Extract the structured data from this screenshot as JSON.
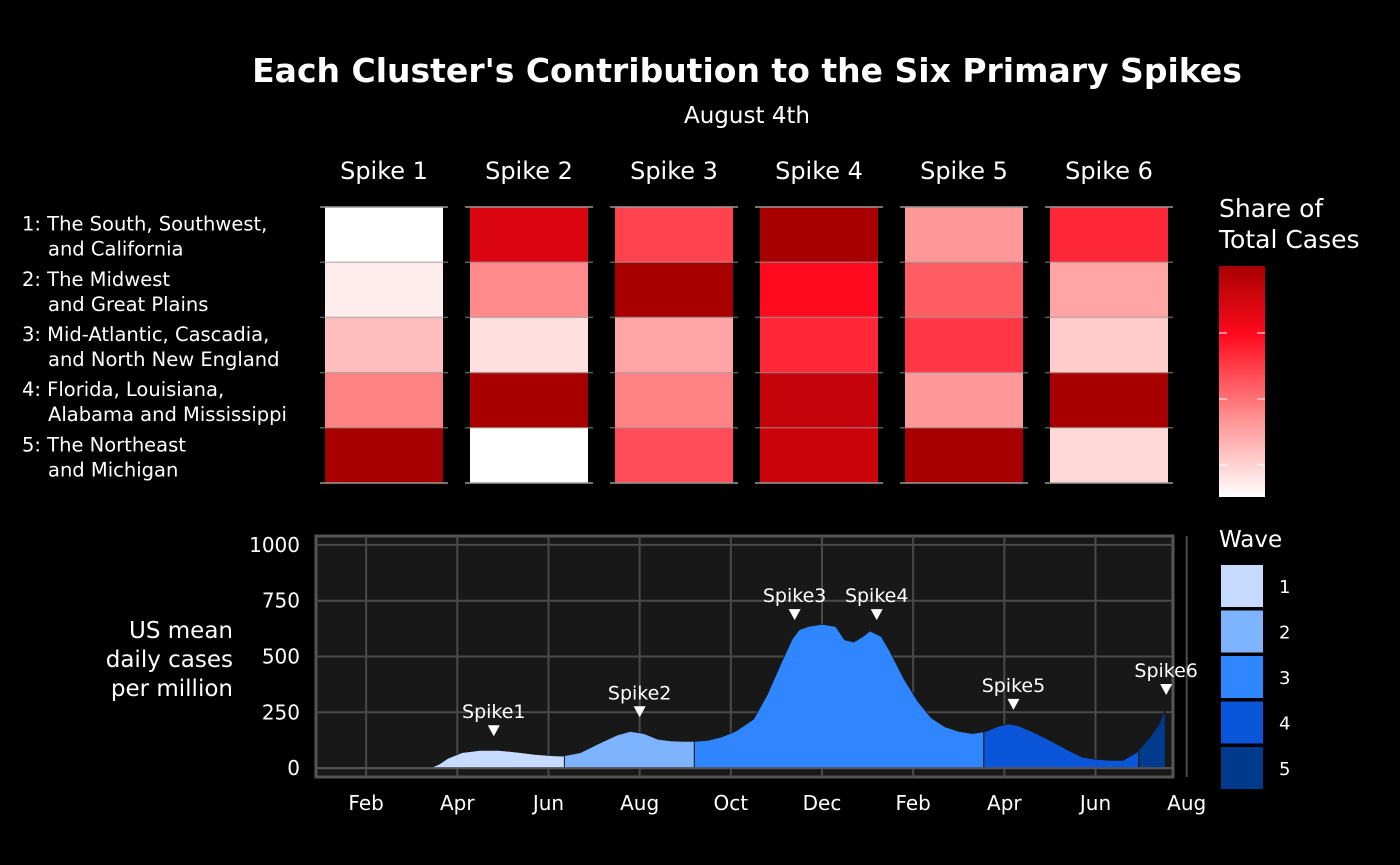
{
  "chart_data": [
    {
      "type": "heatmap",
      "title": "Each Cluster's Contribution to the Six Primary Spikes",
      "subtitle": "August 4th",
      "columns": [
        "Spike 1",
        "Spike 2",
        "Spike 3",
        "Spike 4",
        "Spike 5",
        "Spike 6"
      ],
      "rows": [
        {
          "line1": "1: The South, Southwest,",
          "line2": "and California"
        },
        {
          "line1": "2: The Midwest",
          "line2": "and Great Plains"
        },
        {
          "line1": "3: Mid-Atlantic, Cascadia,",
          "line2": "and North New England"
        },
        {
          "line1": "4: Florida, Louisiana,",
          "line2": "Alabama and Mississippi"
        },
        {
          "line1": "5: The Northeast",
          "line2": "and Michigan"
        }
      ],
      "values": [
        [
          0.0,
          0.82,
          0.55,
          1.0,
          0.32,
          0.62
        ],
        [
          0.06,
          0.36,
          1.0,
          0.7,
          0.48,
          0.28
        ],
        [
          0.2,
          0.1,
          0.28,
          0.62,
          0.58,
          0.16
        ],
        [
          0.38,
          1.0,
          0.38,
          0.9,
          0.32,
          1.0
        ],
        [
          1.0,
          0.0,
          0.52,
          0.88,
          1.0,
          0.12
        ]
      ],
      "legend": {
        "title_line1": "Share of",
        "title_line2": "Total Cases"
      },
      "colors": {
        "low": "#ffffff",
        "mid_light": "#ff8e8e",
        "mid": "#ff0a1e",
        "high": "#a80000"
      }
    },
    {
      "type": "area",
      "ylabel_lines": [
        "US mean",
        "daily cases",
        "per million"
      ],
      "y_ticks": [
        0,
        250,
        500,
        750,
        1000
      ],
      "ylim": [
        -40,
        1040
      ],
      "xlim_month": [
        0.4,
        19.2
      ],
      "x_ticks": [
        {
          "label": "Feb",
          "month": 1.5
        },
        {
          "label": "Apr",
          "month": 3.5
        },
        {
          "label": "Jun",
          "month": 5.5
        },
        {
          "label": "Aug",
          "month": 7.5
        },
        {
          "label": "Oct",
          "month": 9.5
        },
        {
          "label": "Dec",
          "month": 11.5
        },
        {
          "label": "Feb",
          "month": 13.5
        },
        {
          "label": "Apr",
          "month": 15.5
        },
        {
          "label": "Jun",
          "month": 17.5
        },
        {
          "label": "Aug",
          "month": 19.5
        }
      ],
      "series_points": [
        [
          2.9,
          0
        ],
        [
          3.1,
          18
        ],
        [
          3.3,
          45
        ],
        [
          3.6,
          70
        ],
        [
          4.0,
          80
        ],
        [
          4.4,
          80
        ],
        [
          4.8,
          72
        ],
        [
          5.2,
          62
        ],
        [
          5.6,
          56
        ],
        [
          5.8,
          54
        ],
        [
          6.2,
          70
        ],
        [
          6.6,
          110
        ],
        [
          7.0,
          148
        ],
        [
          7.3,
          165
        ],
        [
          7.6,
          155
        ],
        [
          7.9,
          130
        ],
        [
          8.2,
          122
        ],
        [
          8.5,
          120
        ],
        [
          8.7,
          120
        ],
        [
          9.0,
          125
        ],
        [
          9.3,
          140
        ],
        [
          9.6,
          165
        ],
        [
          10.0,
          220
        ],
        [
          10.3,
          330
        ],
        [
          10.6,
          470
        ],
        [
          10.85,
          580
        ],
        [
          11.0,
          620
        ],
        [
          11.2,
          635
        ],
        [
          11.5,
          645
        ],
        [
          11.8,
          635
        ],
        [
          12.0,
          575
        ],
        [
          12.2,
          565
        ],
        [
          12.4,
          590
        ],
        [
          12.55,
          615
        ],
        [
          12.8,
          590
        ],
        [
          13.0,
          520
        ],
        [
          13.3,
          400
        ],
        [
          13.6,
          300
        ],
        [
          13.9,
          225
        ],
        [
          14.2,
          185
        ],
        [
          14.5,
          165
        ],
        [
          14.8,
          155
        ],
        [
          15.1,
          165
        ],
        [
          15.4,
          190
        ],
        [
          15.6,
          198
        ],
        [
          15.8,
          190
        ],
        [
          16.1,
          165
        ],
        [
          16.5,
          125
        ],
        [
          16.9,
          80
        ],
        [
          17.2,
          50
        ],
        [
          17.5,
          40
        ],
        [
          17.8,
          35
        ],
        [
          18.1,
          35
        ],
        [
          18.4,
          70
        ],
        [
          18.7,
          140
        ],
        [
          18.9,
          200
        ],
        [
          19.03,
          265
        ],
        [
          19.03,
          0
        ]
      ],
      "waves": [
        {
          "name": "1",
          "start": 2.9,
          "end": 5.85,
          "color": "#c6dbff"
        },
        {
          "name": "2",
          "start": 5.85,
          "end": 8.7,
          "color": "#7eb4ff"
        },
        {
          "name": "3",
          "start": 8.7,
          "end": 15.05,
          "color": "#2f86ff"
        },
        {
          "name": "4",
          "start": 15.05,
          "end": 18.45,
          "color": "#0a55d8"
        },
        {
          "name": "5",
          "start": 18.45,
          "end": 19.04,
          "color": "#003a8c"
        }
      ],
      "annotations": [
        {
          "label": "Spike1",
          "month": 4.3,
          "value": 80
        },
        {
          "label": "Spike2",
          "month": 7.5,
          "value": 165
        },
        {
          "label": "Spike3",
          "month": 10.9,
          "value": 600
        },
        {
          "label": "Spike4",
          "month": 12.7,
          "value": 600
        },
        {
          "label": "Spike5",
          "month": 15.7,
          "value": 198
        },
        {
          "label": "Spike6",
          "month": 19.05,
          "value": 265
        }
      ],
      "legend": {
        "title": "Wave"
      }
    }
  ]
}
